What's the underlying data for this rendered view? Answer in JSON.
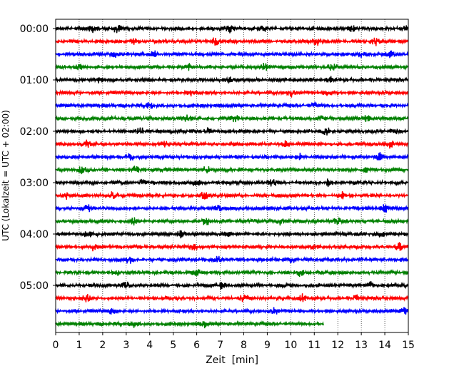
{
  "chart_data": {
    "type": "line",
    "xlabel": "Zeit  [min]",
    "ylabel": "UTC (Lokalzeit = UTC + 02:00)",
    "xlim": [
      0,
      15
    ],
    "x_ticks": [
      "0",
      "1",
      "2",
      "3",
      "4",
      "5",
      "6",
      "7",
      "8",
      "9",
      "10",
      "11",
      "12",
      "13",
      "14",
      "15"
    ],
    "y_ticks": [
      "00:00",
      "01:00",
      "02:00",
      "03:00",
      "04:00",
      "05:00"
    ],
    "grid": "vertical dotted",
    "colors": [
      "#000000",
      "#ff0000",
      "#0000ff",
      "#008000"
    ],
    "series": [
      {
        "start": "00:00",
        "color": "#000000",
        "x_end": 15,
        "amp": 3,
        "bursts": [
          1.6,
          2.6,
          7.4,
          8.8,
          12.6,
          15.0
        ]
      },
      {
        "start": "00:15",
        "color": "#ff0000",
        "x_end": 15,
        "amp": 3,
        "bursts": [
          3.3,
          6.8,
          11.1,
          13.6
        ]
      },
      {
        "start": "00:30",
        "color": "#0000ff",
        "x_end": 15,
        "amp": 3,
        "bursts": [
          2.5,
          4.2,
          13.0,
          14.2
        ]
      },
      {
        "start": "00:45",
        "color": "#008000",
        "x_end": 15,
        "amp": 3,
        "bursts": [
          1.0,
          5.6,
          8.9,
          11.8
        ]
      },
      {
        "start": "01:00",
        "color": "#000000",
        "x_end": 15,
        "amp": 3,
        "bursts": [
          1.8,
          7.4,
          11.7
        ]
      },
      {
        "start": "01:15",
        "color": "#ff0000",
        "x_end": 15,
        "amp": 3,
        "bursts": [
          5.8,
          10.0,
          11.6
        ]
      },
      {
        "start": "01:30",
        "color": "#0000ff",
        "x_end": 15,
        "amp": 3,
        "bursts": [
          4.0,
          11.0
        ]
      },
      {
        "start": "01:45",
        "color": "#008000",
        "x_end": 15,
        "amp": 3,
        "bursts": [
          5.6,
          7.6,
          11.3,
          13.2
        ]
      },
      {
        "start": "02:00",
        "color": "#000000",
        "x_end": 15,
        "amp": 3,
        "bursts": [
          3.6,
          6.5,
          11.5,
          14.4
        ]
      },
      {
        "start": "02:15",
        "color": "#ff0000",
        "x_end": 15,
        "amp": 3,
        "bursts": [
          1.3,
          4.6,
          9.8,
          14.2
        ]
      },
      {
        "start": "02:30",
        "color": "#0000ff",
        "x_end": 15,
        "amp": 3,
        "bursts": [
          3.2,
          10.4,
          13.8
        ]
      },
      {
        "start": "02:45",
        "color": "#008000",
        "x_end": 15,
        "amp": 3,
        "bursts": [
          1.1,
          3.4,
          6.4,
          13.2
        ]
      },
      {
        "start": "03:00",
        "color": "#000000",
        "x_end": 15,
        "amp": 3,
        "bursts": [
          3.7,
          6.0,
          9.2,
          11.6
        ]
      },
      {
        "start": "03:15",
        "color": "#ff0000",
        "x_end": 15,
        "amp": 3,
        "bursts": [
          0.5,
          2.4,
          6.3,
          12.2
        ]
      },
      {
        "start": "03:30",
        "color": "#0000ff",
        "x_end": 15,
        "amp": 3,
        "bursts": [
          1.4,
          6.9,
          14.0
        ]
      },
      {
        "start": "03:45",
        "color": "#008000",
        "x_end": 15,
        "amp": 3,
        "bursts": [
          3.3,
          6.4,
          9.6,
          12.0
        ]
      },
      {
        "start": "04:00",
        "color": "#000000",
        "x_end": 15,
        "amp": 3,
        "bursts": [
          1.4,
          5.3,
          7.3,
          13.8
        ]
      },
      {
        "start": "04:15",
        "color": "#ff0000",
        "x_end": 15,
        "amp": 3,
        "bursts": [
          1.6,
          5.9,
          11.0,
          14.6
        ]
      },
      {
        "start": "04:30",
        "color": "#0000ff",
        "x_end": 15,
        "amp": 3,
        "bursts": [
          3.1,
          6.9,
          10.0
        ]
      },
      {
        "start": "04:45",
        "color": "#008000",
        "x_end": 15,
        "amp": 3,
        "bursts": [
          2.6,
          6.0,
          10.4
        ]
      },
      {
        "start": "05:00",
        "color": "#000000",
        "x_end": 15,
        "amp": 3,
        "bursts": [
          3.0,
          7.1,
          13.4
        ]
      },
      {
        "start": "05:15",
        "color": "#ff0000",
        "x_end": 15,
        "amp": 3,
        "bursts": [
          1.3,
          8.0,
          10.5,
          12.8
        ]
      },
      {
        "start": "05:30",
        "color": "#0000ff",
        "x_end": 15,
        "amp": 3,
        "bursts": [
          2.4,
          9.3,
          14.8
        ]
      },
      {
        "start": "05:45",
        "color": "#008000",
        "x_end": 11.4,
        "amp": 3,
        "bursts": [
          3.3,
          6.3
        ]
      }
    ]
  }
}
